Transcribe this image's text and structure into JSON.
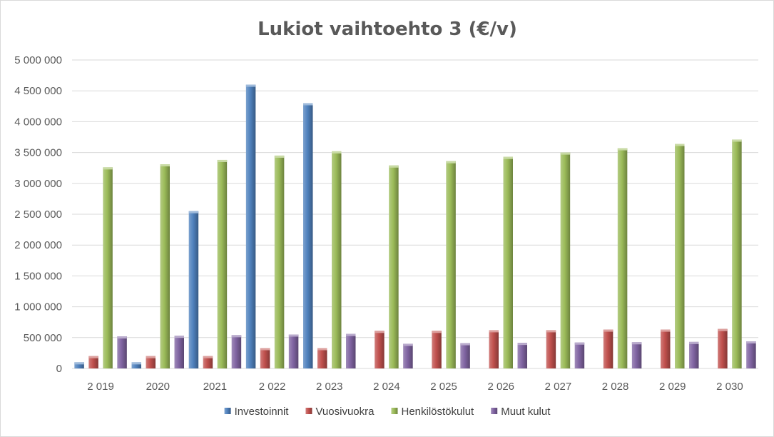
{
  "chart_data": {
    "type": "bar",
    "title": "Lukiot vaihtoehto 3 (€/v)",
    "xlabel": "",
    "ylabel": "",
    "categories": [
      "2 019",
      "2020",
      "2021",
      "2 022",
      "2 023",
      "2 024",
      "2 025",
      "2 026",
      "2 027",
      "2 028",
      "2 029",
      "2 030"
    ],
    "ylim": [
      0,
      5000000
    ],
    "yticks": [
      0,
      500000,
      1000000,
      1500000,
      2000000,
      2500000,
      3000000,
      3500000,
      4000000,
      4500000,
      5000000
    ],
    "ytick_labels": [
      "0",
      "500 000",
      "1 000 000",
      "1 500 000",
      "2 000 000",
      "2 500 000",
      "3 000 000",
      "3 500 000",
      "4 000 000",
      "4 500 000",
      "5 000 000"
    ],
    "grid": true,
    "legend_position": "bottom",
    "series": [
      {
        "name": "Investoinnit",
        "color": "#4f81bd",
        "values": [
          100000,
          100000,
          2550000,
          4600000,
          4300000,
          0,
          0,
          0,
          0,
          0,
          0,
          0
        ]
      },
      {
        "name": "Vuosivuokra",
        "color": "#c0504d",
        "values": [
          200000,
          200000,
          200000,
          330000,
          330000,
          610000,
          610000,
          620000,
          620000,
          630000,
          630000,
          640000
        ]
      },
      {
        "name": "Henkilöstökulut",
        "color": "#9bbb59",
        "values": [
          3260000,
          3310000,
          3380000,
          3450000,
          3520000,
          3290000,
          3360000,
          3430000,
          3500000,
          3570000,
          3640000,
          3710000
        ]
      },
      {
        "name": "Muut kulut",
        "color": "#8064a2",
        "values": [
          520000,
          530000,
          540000,
          550000,
          560000,
          400000,
          410000,
          415000,
          420000,
          425000,
          430000,
          440000
        ]
      }
    ]
  }
}
